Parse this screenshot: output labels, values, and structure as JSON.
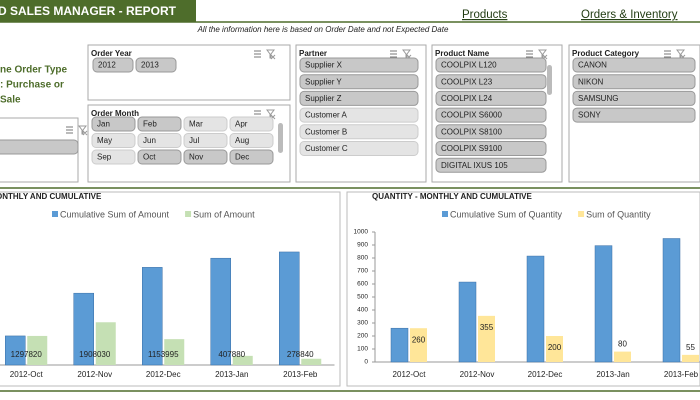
{
  "header": {
    "title": "D SALES MANAGER - REPORT",
    "links": [
      "Products",
      "Orders & Inventory"
    ],
    "note": "All the information here is based on Order Date and not Expected Date"
  },
  "side_text": [
    "ne Order Type",
    ": Purchase or",
    "Sale"
  ],
  "slicers": [
    {
      "title": "Order Year",
      "items": [
        "2012",
        "2013"
      ],
      "selected": [
        true,
        true
      ]
    },
    {
      "title": "Order Month",
      "items": [
        "Jan",
        "Feb",
        "Mar",
        "Apr",
        "May",
        "Jun",
        "Jul",
        "Aug",
        "Sep",
        "Oct",
        "Nov",
        "Dec"
      ],
      "selected": [
        true,
        true,
        false,
        false,
        false,
        false,
        false,
        false,
        false,
        true,
        true,
        true
      ]
    },
    {
      "title": "Partner",
      "items": [
        "Supplier X",
        "Supplier Y",
        "Supplier Z",
        "Customer A",
        "Customer B",
        "Customer C"
      ],
      "selected": [
        true,
        true,
        true,
        false,
        false,
        false
      ]
    },
    {
      "title": "Product Name",
      "items": [
        "COOLPIX L120",
        "COOLPIX L23",
        "COOLPIX L24",
        "COOLPIX S6000",
        "COOLPIX S8100",
        "COOLPIX S9100",
        "DIGITAL IXUS 105"
      ],
      "selected": [
        true,
        true,
        true,
        true,
        true,
        true,
        true
      ]
    },
    {
      "title": "Product Category",
      "items": [
        "CANON",
        "NIKON",
        "SAMSUNG",
        "SONY"
      ],
      "selected": [
        true,
        true,
        true,
        true
      ]
    }
  ],
  "chart_data": [
    {
      "type": "bar",
      "title": "ONTHLY AND CUMULATIVE",
      "categories": [
        "2012-Oct",
        "2012-Nov",
        "2012-Dec",
        "2013-Jan",
        "2013-Feb"
      ],
      "series": [
        {
          "name": "Cumulative Sum of Amount",
          "color": "#5b9bd5",
          "values": [
            1297820,
            3205850,
            4359845,
            4767725,
            5046565
          ]
        },
        {
          "name": "Sum of Amount",
          "color": "#c5e0b4",
          "values": [
            1297820,
            1908030,
            1153995,
            407880,
            278840
          ],
          "labels": true
        }
      ]
    },
    {
      "type": "bar",
      "title": "QUANTITY - MONTHLY AND CUMULATIVE",
      "categories": [
        "2012-Oct",
        "2012-Nov",
        "2012-Dec",
        "2013-Jan",
        "2013-Feb"
      ],
      "series": [
        {
          "name": "Cumulative Sum of Quantity",
          "color": "#5b9bd5",
          "values": [
            260,
            615,
            815,
            895,
            950
          ]
        },
        {
          "name": "Sum of Quantity",
          "color": "#ffe699",
          "values": [
            260,
            355,
            200,
            80,
            55
          ],
          "labels": true
        }
      ],
      "ylim": [
        0,
        1000
      ],
      "yticks": [
        0,
        100,
        200,
        300,
        400,
        500,
        600,
        700,
        800,
        900,
        1000
      ]
    }
  ]
}
